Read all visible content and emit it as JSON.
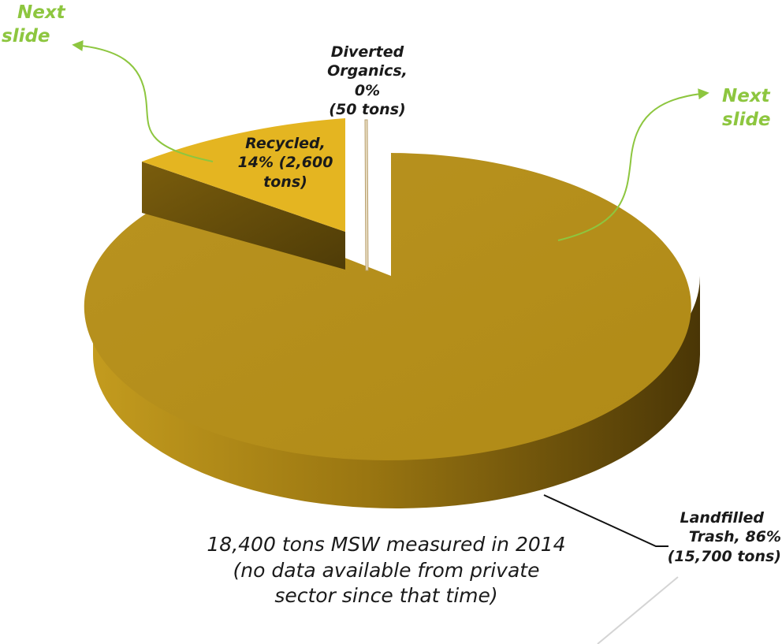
{
  "chart_data": {
    "type": "pie",
    "style": "3d-exploded",
    "slices": [
      {
        "name": "Landfilled Trash",
        "percent": 86,
        "tons": 15700,
        "color": "#b8901a",
        "label_lines": [
          "Landfilled",
          "Trash, 86%",
          "(15,700 tons)"
        ]
      },
      {
        "name": "Recycled",
        "percent": 14,
        "tons": 2600,
        "color": "#e4b521",
        "label_lines": [
          "Recycled,",
          "14% (2,600",
          "tons)"
        ]
      },
      {
        "name": "Diverted Organics",
        "percent": 0,
        "tons": 50,
        "color": "#e8dcc0",
        "label_lines": [
          "Diverted",
          "Organics, 0%",
          "(50 tons)"
        ]
      }
    ],
    "caption_lines": [
      "18,400 tons MSW measured in 2014",
      "(no data available from private",
      "sector since that time)"
    ]
  },
  "nav_links": {
    "left": {
      "lines": [
        "Next",
        "slide"
      ],
      "color": "#8dc63f"
    },
    "right": {
      "lines": [
        "Next",
        "slide"
      ],
      "color": "#8dc63f"
    }
  }
}
